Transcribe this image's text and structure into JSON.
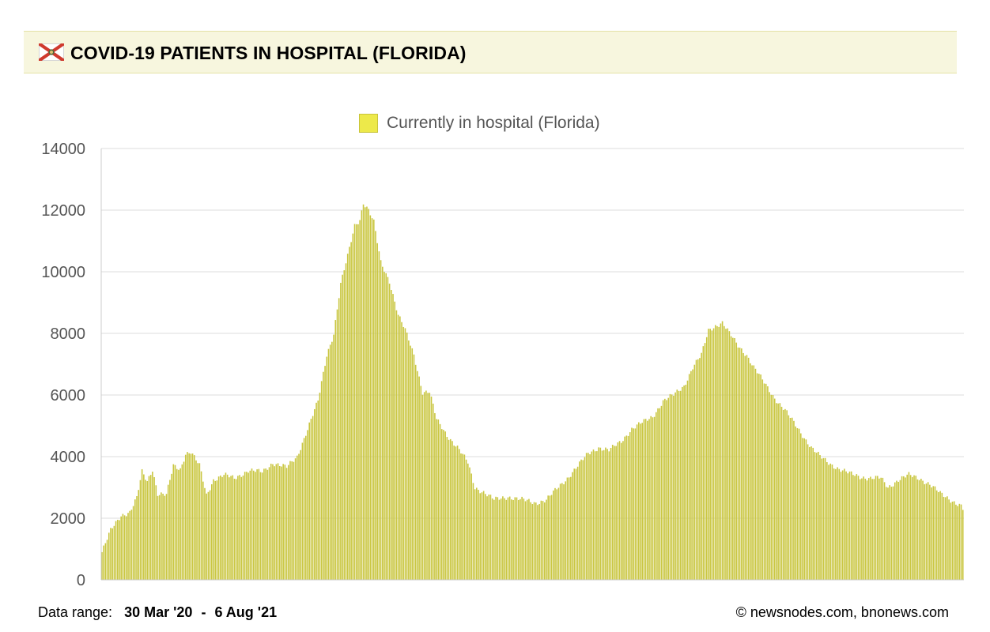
{
  "header": {
    "title": "COVID-19 PATIENTS IN HOSPITAL (FLORIDA)",
    "flag_icon": "florida-flag-icon"
  },
  "footer": {
    "range_label": "Data range:",
    "range_start": "30 Mar '20",
    "range_separator": "-",
    "range_end": "6 Aug '21",
    "credit": "© newsnodes.com, bnonews.com"
  },
  "colors": {
    "bar_fill": "#c9c640",
    "bar_stroke": "#a9a530",
    "legend_swatch": "#ede94a",
    "header_bg": "#f7f6de",
    "grid": "#dddddd",
    "axis_text": "#555555"
  },
  "chart_data": {
    "type": "bar",
    "legend_position": "top-center",
    "grid": true,
    "ylim": [
      0,
      14000
    ],
    "yticks": [
      "0",
      "2000",
      "4000",
      "6000",
      "8000",
      "10000",
      "12000",
      "14000"
    ],
    "series": [
      {
        "name": "Currently in hospital (Florida)",
        "x_start": "2020-03-30",
        "x_end": "2021-08-06",
        "anchors": [
          [
            "2020-03-30",
            900
          ],
          [
            "2020-04-04",
            1600
          ],
          [
            "2020-04-10",
            2100
          ],
          [
            "2020-04-15",
            2200
          ],
          [
            "2020-04-19",
            2650
          ],
          [
            "2020-04-22",
            3500
          ],
          [
            "2020-04-25",
            3200
          ],
          [
            "2020-04-28",
            3600
          ],
          [
            "2020-05-01",
            2800
          ],
          [
            "2020-05-06",
            2750
          ],
          [
            "2020-05-10",
            3700
          ],
          [
            "2020-05-14",
            3600
          ],
          [
            "2020-05-17",
            4100
          ],
          [
            "2020-05-20",
            4150
          ],
          [
            "2020-05-25",
            3700
          ],
          [
            "2020-05-29",
            2750
          ],
          [
            "2020-06-02",
            3250
          ],
          [
            "2020-06-08",
            3400
          ],
          [
            "2020-06-14",
            3300
          ],
          [
            "2020-06-22",
            3550
          ],
          [
            "2020-06-30",
            3500
          ],
          [
            "2020-07-06",
            3800
          ],
          [
            "2020-07-14",
            3650
          ],
          [
            "2020-07-20",
            4000
          ],
          [
            "2020-07-26",
            4900
          ],
          [
            "2020-08-01",
            5800
          ],
          [
            "2020-08-06",
            7300
          ],
          [
            "2020-08-10",
            8000
          ],
          [
            "2020-08-14",
            9600
          ],
          [
            "2020-08-18",
            10500
          ],
          [
            "2020-08-22",
            11500
          ],
          [
            "2020-08-25",
            11700
          ],
          [
            "2020-08-27",
            12250
          ],
          [
            "2020-08-30",
            12000
          ],
          [
            "2020-09-02",
            11600
          ],
          [
            "2020-09-06",
            10300
          ],
          [
            "2020-09-11",
            9700
          ],
          [
            "2020-09-16",
            8600
          ],
          [
            "2020-09-20",
            8100
          ],
          [
            "2020-09-25",
            7300
          ],
          [
            "2020-09-30",
            6100
          ],
          [
            "2020-10-04",
            6100
          ],
          [
            "2020-10-08",
            5200
          ],
          [
            "2020-10-14",
            4700
          ],
          [
            "2020-10-20",
            4300
          ],
          [
            "2020-10-26",
            3800
          ],
          [
            "2020-10-30",
            3000
          ],
          [
            "2020-11-04",
            2850
          ],
          [
            "2020-11-10",
            2600
          ],
          [
            "2020-11-18",
            2700
          ],
          [
            "2020-11-26",
            2600
          ],
          [
            "2020-12-04",
            2500
          ],
          [
            "2020-12-10",
            2600
          ],
          [
            "2020-12-16",
            2950
          ],
          [
            "2020-12-22",
            3300
          ],
          [
            "2020-12-28",
            3700
          ],
          [
            "2021-01-03",
            4100
          ],
          [
            "2021-01-09",
            4300
          ],
          [
            "2021-01-15",
            4200
          ],
          [
            "2021-01-22",
            4500
          ],
          [
            "2021-01-28",
            4900
          ],
          [
            "2021-02-03",
            5100
          ],
          [
            "2021-02-09",
            5300
          ],
          [
            "2021-02-15",
            5800
          ],
          [
            "2021-02-21",
            6000
          ],
          [
            "2021-02-27",
            6300
          ],
          [
            "2021-03-04",
            6900
          ],
          [
            "2021-03-09",
            7300
          ],
          [
            "2021-03-13",
            8100
          ],
          [
            "2021-03-17",
            8250
          ],
          [
            "2021-03-21",
            8350
          ],
          [
            "2021-03-25",
            8000
          ],
          [
            "2021-03-30",
            7600
          ],
          [
            "2021-04-04",
            7300
          ],
          [
            "2021-04-08",
            6900
          ],
          [
            "2021-04-14",
            6400
          ],
          [
            "2021-04-20",
            5900
          ],
          [
            "2021-04-26",
            5500
          ],
          [
            "2021-05-01",
            5100
          ],
          [
            "2021-05-06",
            4700
          ],
          [
            "2021-05-11",
            4300
          ],
          [
            "2021-05-16",
            4000
          ],
          [
            "2021-05-21",
            3800
          ],
          [
            "2021-05-27",
            3600
          ],
          [
            "2021-06-02",
            3450
          ],
          [
            "2021-06-08",
            3350
          ],
          [
            "2021-06-14",
            3300
          ],
          [
            "2021-06-20",
            3300
          ],
          [
            "2021-06-24",
            3000
          ],
          [
            "2021-06-30",
            3250
          ],
          [
            "2021-07-06",
            3400
          ],
          [
            "2021-07-12",
            3300
          ],
          [
            "2021-07-18",
            3100
          ],
          [
            "2021-07-24",
            2800
          ],
          [
            "2021-07-30",
            2600
          ],
          [
            "2021-08-05",
            2400
          ],
          [
            "2021-08-06",
            2300
          ]
        ]
      }
    ]
  }
}
